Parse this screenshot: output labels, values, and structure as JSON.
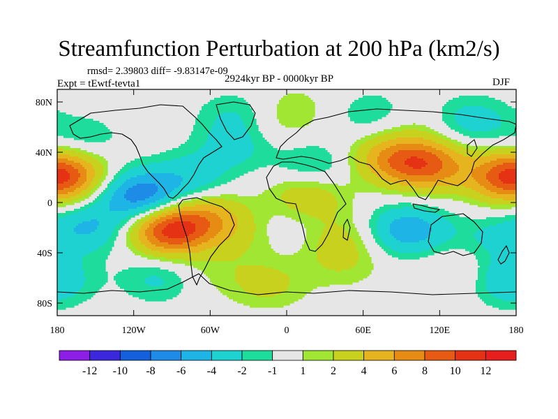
{
  "chart_data": {
    "type": "heatmap",
    "title": "Streamfunction Perturbation at 200 hPa (km2/s)",
    "stats_text": "rmsd= 2.39803  diff= -9.83147e-09",
    "left_label": "Expt = tEwtf-tevta1",
    "center_label": "2924kyr BP - 0000kyr BP",
    "right_label": "DJF",
    "x_ticks": [
      {
        "value": -180,
        "label": "180"
      },
      {
        "value": -120,
        "label": "120W"
      },
      {
        "value": -60,
        "label": "60W"
      },
      {
        "value": 0,
        "label": "0"
      },
      {
        "value": 60,
        "label": "60E"
      },
      {
        "value": 120,
        "label": "120E"
      },
      {
        "value": 180,
        "label": "180"
      }
    ],
    "y_ticks": [
      {
        "value": 80,
        "label": "80N"
      },
      {
        "value": 40,
        "label": "40N"
      },
      {
        "value": 0,
        "label": "0"
      },
      {
        "value": -40,
        "label": "40S"
      },
      {
        "value": -80,
        "label": "80S"
      }
    ],
    "xlim": [
      -180,
      180
    ],
    "ylim": [
      -90,
      90
    ],
    "colorbar": {
      "levels": [
        -12,
        -10,
        -8,
        -6,
        -4,
        -2,
        -1,
        1,
        2,
        4,
        6,
        8,
        10,
        12
      ],
      "labels": [
        "-12",
        "-10",
        "-8",
        "-6",
        "-4",
        "-2",
        "-1",
        "1",
        "2",
        "4",
        "6",
        "8",
        "10",
        "12"
      ],
      "colors": [
        "#8c1ee6",
        "#3c28dc",
        "#1460dc",
        "#1e8ce6",
        "#1eb4e6",
        "#1ed2d2",
        "#1edc9c",
        "#e6e6e6",
        "#a0e632",
        "#c8d21e",
        "#e6b41e",
        "#e68c14",
        "#e65a14",
        "#e63214",
        "#e61e1e"
      ]
    },
    "anomalies": [
      {
        "lon": -172,
        "lat": 22,
        "value": 6.5
      },
      {
        "lon": 170,
        "lat": 20,
        "value": 6.0
      },
      {
        "lon": -160,
        "lat": 50,
        "value": -2.0
      },
      {
        "lon": -115,
        "lat": 5,
        "value": -7.5
      },
      {
        "lon": -75,
        "lat": 20,
        "value": -3.0
      },
      {
        "lon": -40,
        "lat": 45,
        "value": -2.5
      },
      {
        "lon": -10,
        "lat": 58,
        "value": 1.0
      },
      {
        "lon": 20,
        "lat": 28,
        "value": -3.0
      },
      {
        "lon": -40,
        "lat": 70,
        "value": -2.0
      },
      {
        "lon": 5,
        "lat": 75,
        "value": 1.5
      },
      {
        "lon": 68,
        "lat": 70,
        "value": -2.0
      },
      {
        "lon": 100,
        "lat": 62,
        "value": 1.0
      },
      {
        "lon": 145,
        "lat": 65,
        "value": -3.0
      },
      {
        "lon": 110,
        "lat": 30,
        "value": 8.0
      },
      {
        "lon": 80,
        "lat": 35,
        "value": 5.0
      },
      {
        "lon": 15,
        "lat": 10,
        "value": 3.0
      },
      {
        "lon": 20,
        "lat": -5,
        "value": 1.5
      },
      {
        "lon": 5,
        "lat": -20,
        "value": -1.5
      },
      {
        "lon": -92,
        "lat": -22,
        "value": 10.5
      },
      {
        "lon": -60,
        "lat": -12,
        "value": 4.5
      },
      {
        "lon": -155,
        "lat": -20,
        "value": -4.0
      },
      {
        "lon": -30,
        "lat": -28,
        "value": 1.5
      },
      {
        "lon": 40,
        "lat": -30,
        "value": 2.5
      },
      {
        "lon": 95,
        "lat": -22,
        "value": -5.5
      },
      {
        "lon": 160,
        "lat": -28,
        "value": -2.0
      },
      {
        "lon": -100,
        "lat": -60,
        "value": -2.5
      },
      {
        "lon": -60,
        "lat": -55,
        "value": 1.2
      },
      {
        "lon": -15,
        "lat": -65,
        "value": 2.5
      },
      {
        "lon": 45,
        "lat": -50,
        "value": 1.5
      },
      {
        "lon": 135,
        "lat": -55,
        "value": 1.5
      },
      {
        "lon": 175,
        "lat": -62,
        "value": -4.0
      }
    ]
  }
}
